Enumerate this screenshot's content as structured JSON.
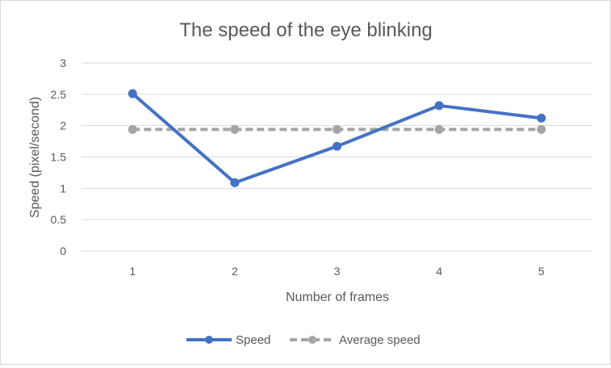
{
  "chart_data": {
    "type": "line",
    "title": "The speed of the eye blinking",
    "xlabel": "Number of frames",
    "ylabel": "Speed (pixel/second)",
    "categories": [
      "1",
      "2",
      "3",
      "4",
      "5"
    ],
    "ylim": [
      0,
      3
    ],
    "yticks": [
      "0",
      "0.5",
      "1",
      "1.5",
      "2",
      "2.5",
      "3"
    ],
    "grid": true,
    "legend_position": "bottom",
    "series": [
      {
        "name": "Speed",
        "values": [
          2.51,
          1.09,
          1.67,
          2.32,
          2.12
        ],
        "color": "#4472c4",
        "style": "solid"
      },
      {
        "name": "Average speed",
        "values": [
          1.94,
          1.94,
          1.94,
          1.94,
          1.94
        ],
        "color": "#a5a5a5",
        "style": "dashed"
      }
    ]
  }
}
